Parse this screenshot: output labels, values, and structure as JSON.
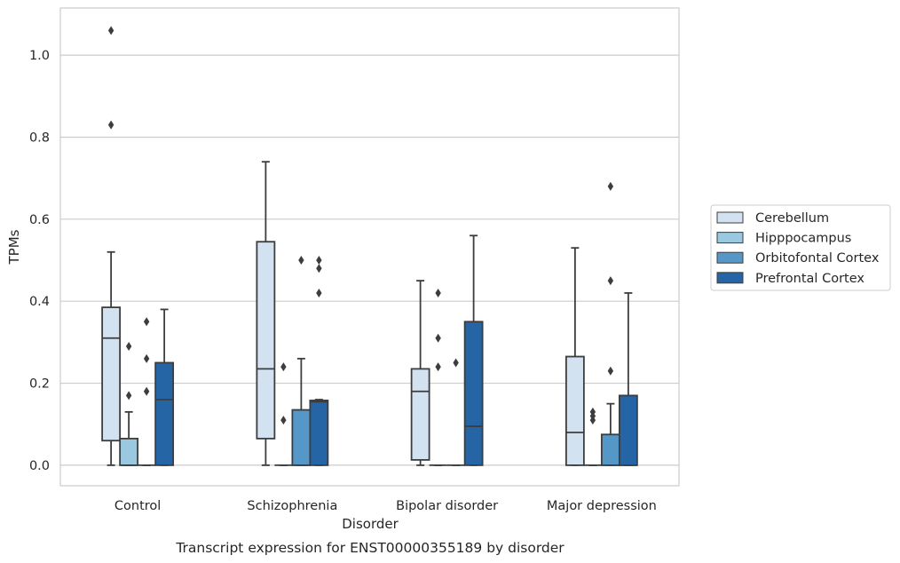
{
  "chart_data": {
    "type": "box",
    "title": "",
    "caption": "Transcript expression for ENST00000355189 by disorder",
    "xlabel": "Disorder",
    "ylabel": "TPMs",
    "ylim": [
      -0.05,
      1.115
    ],
    "yticks": [
      "0.0",
      "0.2",
      "0.4",
      "0.6",
      "0.8",
      "1.0"
    ],
    "grid": true,
    "legend_position": "right",
    "categories": [
      "Control",
      "Schizophrenia",
      "Bipolar disorder",
      "Major depression"
    ],
    "series": [
      {
        "name": "Cerebellum",
        "color": "#d2e2f1",
        "boxes": [
          {
            "whislo": 0.0,
            "q1": 0.06,
            "med": 0.31,
            "q3": 0.385,
            "whishi": 0.52,
            "fliers": [
              1.06,
              0.83
            ]
          },
          {
            "whislo": 0.0,
            "q1": 0.065,
            "med": 0.235,
            "q3": 0.545,
            "whishi": 0.74,
            "fliers": []
          },
          {
            "whislo": 0.0,
            "q1": 0.013,
            "med": 0.18,
            "q3": 0.235,
            "whishi": 0.45,
            "fliers": []
          },
          {
            "whislo": 0.0,
            "q1": 0.0,
            "med": 0.08,
            "q3": 0.265,
            "whishi": 0.53,
            "fliers": []
          }
        ]
      },
      {
        "name": "Hipppocampus",
        "color": "#9ac8e0",
        "boxes": [
          {
            "whislo": 0.0,
            "q1": 0.0,
            "med": 0.0,
            "q3": 0.065,
            "whishi": 0.13,
            "fliers": [
              0.29,
              0.17
            ]
          },
          {
            "whislo": 0.0,
            "q1": 0.0,
            "med": 0.0,
            "q3": 0.0,
            "whishi": 0.0,
            "fliers": [
              0.24,
              0.11
            ]
          },
          {
            "whislo": 0.0,
            "q1": 0.0,
            "med": 0.0,
            "q3": 0.0,
            "whishi": 0.0,
            "fliers": [
              0.42,
              0.31,
              0.24
            ]
          },
          {
            "whislo": 0.0,
            "q1": 0.0,
            "med": 0.0,
            "q3": 0.0,
            "whishi": 0.0,
            "fliers": [
              0.13,
              0.12,
              0.11
            ]
          }
        ]
      },
      {
        "name": "Orbitofontal Cortex",
        "color": "#5597c7",
        "boxes": [
          {
            "whislo": 0.0,
            "q1": 0.0,
            "med": 0.0,
            "q3": 0.0,
            "whishi": 0.0,
            "fliers": [
              0.35,
              0.26,
              0.18
            ]
          },
          {
            "whislo": 0.0,
            "q1": 0.0,
            "med": 0.0,
            "q3": 0.135,
            "whishi": 0.26,
            "fliers": [
              0.5
            ]
          },
          {
            "whislo": 0.0,
            "q1": 0.0,
            "med": 0.0,
            "q3": 0.0,
            "whishi": 0.0,
            "fliers": [
              0.25
            ]
          },
          {
            "whislo": 0.0,
            "q1": 0.0,
            "med": 0.0,
            "q3": 0.075,
            "whishi": 0.15,
            "fliers": [
              0.68,
              0.45,
              0.23
            ]
          }
        ]
      },
      {
        "name": "Prefrontal Cortex",
        "color": "#2565a5",
        "boxes": [
          {
            "whislo": 0.0,
            "q1": 0.0,
            "med": 0.16,
            "q3": 0.25,
            "whishi": 0.38,
            "fliers": []
          },
          {
            "whislo": 0.0,
            "q1": 0.0,
            "med": 0.155,
            "q3": 0.158,
            "whishi": 0.16,
            "fliers": [
              0.5,
              0.48,
              0.42
            ]
          },
          {
            "whislo": 0.0,
            "q1": 0.0,
            "med": 0.095,
            "q3": 0.35,
            "whishi": 0.56,
            "fliers": []
          },
          {
            "whislo": 0.0,
            "q1": 0.0,
            "med": 0.0,
            "q3": 0.17,
            "whishi": 0.42,
            "fliers": []
          }
        ]
      }
    ]
  }
}
